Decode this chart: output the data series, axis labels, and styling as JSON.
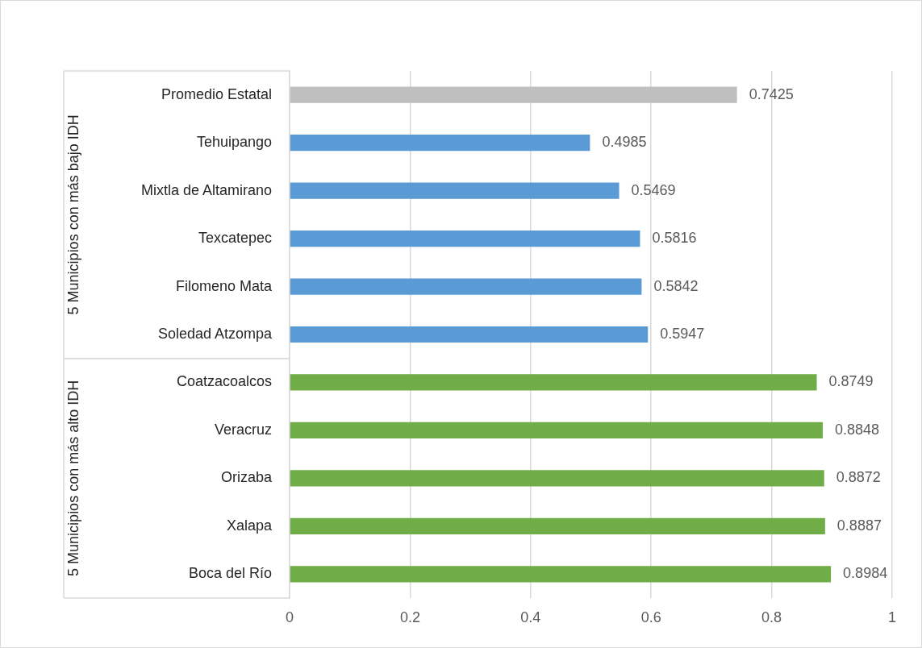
{
  "chart_data": {
    "type": "bar",
    "orientation": "horizontal",
    "categories": [
      "Promedio Estatal",
      "Tehuipango",
      "Mixtla de Altamirano",
      "Texcatepec",
      "Filomeno Mata",
      "Soledad Atzompa",
      "Coatzacoalcos",
      "Veracruz",
      "Orizaba",
      "Xalapa",
      "Boca del Río"
    ],
    "values": [
      0.7425,
      0.4985,
      0.5469,
      0.5816,
      0.5842,
      0.5947,
      0.8749,
      0.8848,
      0.8872,
      0.8887,
      0.8984
    ],
    "colors": [
      "#bfbfbf",
      "#5b9bd5",
      "#5b9bd5",
      "#5b9bd5",
      "#5b9bd5",
      "#5b9bd5",
      "#70ad47",
      "#70ad47",
      "#70ad47",
      "#70ad47",
      "#70ad47"
    ],
    "xlim": [
      0,
      1
    ],
    "xticks": [
      0,
      0.2,
      0.4,
      0.6,
      0.8,
      1
    ],
    "grid": "x",
    "legend": false,
    "data_labels": true,
    "annotations": [
      "5 Municipios con más bajo IDH",
      "5 Municipios con más alto IDH"
    ]
  }
}
